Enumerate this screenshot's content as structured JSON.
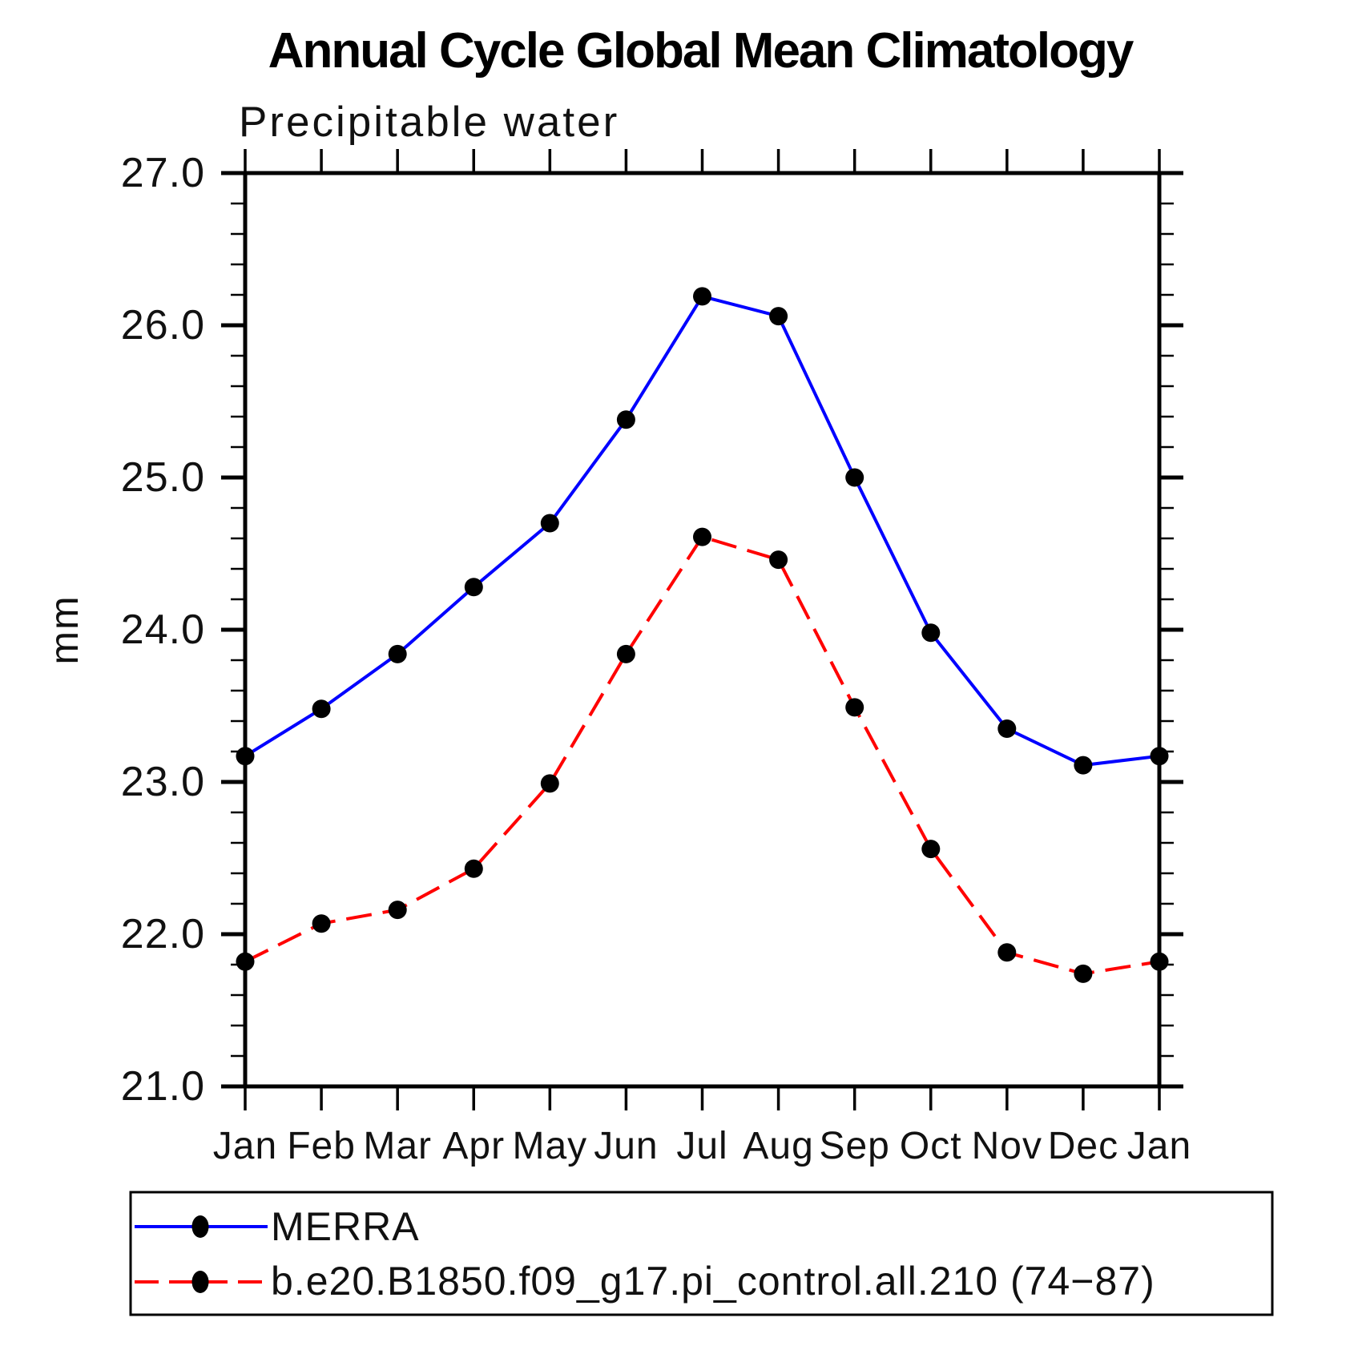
{
  "chart_data": {
    "type": "line",
    "title": "Annual Cycle Global Mean Climatology",
    "subtitle": "Precipitable water",
    "ylabel": "mm",
    "xlabel": "",
    "categories": [
      "Jan",
      "Feb",
      "Mar",
      "Apr",
      "May",
      "Jun",
      "Jul",
      "Aug",
      "Sep",
      "Oct",
      "Nov",
      "Dec",
      "Jan"
    ],
    "ylim": [
      21.0,
      27.0
    ],
    "y_major_step": 1.0,
    "y_minor_step": 0.2,
    "y_tick_labels": [
      "21.0",
      "22.0",
      "23.0",
      "24.0",
      "25.0",
      "26.0",
      "27.0"
    ],
    "grid": false,
    "legend_position": "bottom-left-box",
    "axis_color": "#000000",
    "series": [
      {
        "name": "MERRA",
        "line_style": "solid",
        "line_color": "#0000ff",
        "marker": "filled-circle",
        "marker_color": "#000000",
        "values": [
          23.17,
          23.48,
          23.84,
          24.28,
          24.7,
          25.38,
          26.19,
          26.06,
          25.0,
          23.98,
          23.35,
          23.11,
          23.17
        ]
      },
      {
        "name": "b.e20.B1850.f09_g17.pi_control.all.210 (74−87)",
        "line_style": "dashed",
        "line_color": "#ff0000",
        "marker": "filled-circle",
        "marker_color": "#000000",
        "values": [
          21.82,
          22.07,
          22.16,
          22.43,
          22.99,
          23.84,
          24.61,
          24.46,
          23.49,
          22.56,
          21.88,
          21.74,
          21.82
        ]
      }
    ]
  }
}
